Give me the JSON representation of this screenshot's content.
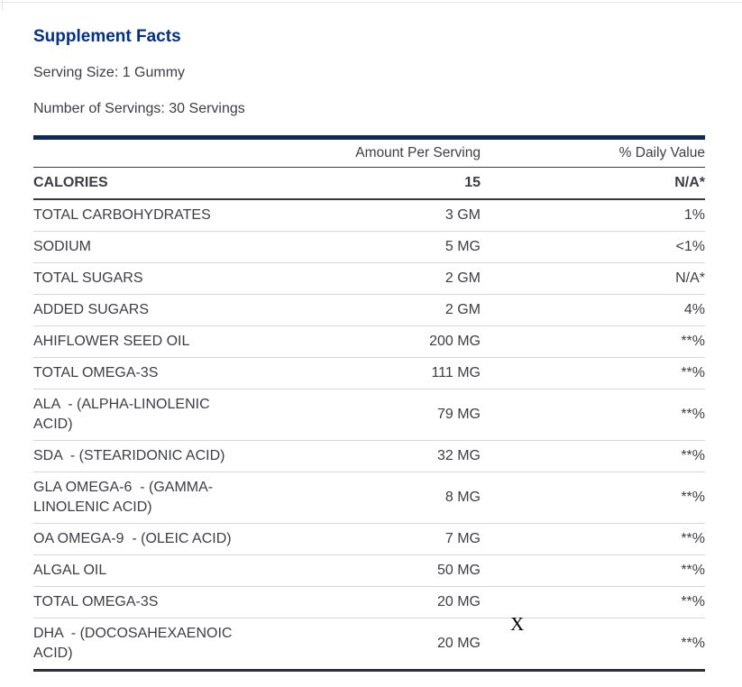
{
  "title": "Supplement Facts",
  "serving_size": "Serving Size: 1 Gummy",
  "number_of_servings": "Number of Servings: 30 Servings",
  "table": {
    "amount_header": "Amount Per Serving",
    "daily_value_header": "% Daily Value",
    "rows": [
      {
        "label": "CALORIES",
        "amount": "15",
        "dv": "N/A*",
        "bold": true
      },
      {
        "label": "TOTAL CARBOHYDRATES",
        "amount": "3 GM",
        "dv": "1%"
      },
      {
        "label": "SODIUM",
        "amount": "5 MG",
        "dv": "<1%"
      },
      {
        "label": "TOTAL SUGARS",
        "amount": "2 GM",
        "dv": "N/A*"
      },
      {
        "label": "ADDED SUGARS",
        "amount": "2 GM",
        "dv": "4%"
      },
      {
        "label": "AHIFLOWER SEED OIL",
        "amount": "200 MG",
        "dv": "**%"
      },
      {
        "label": "TOTAL OMEGA-3S",
        "amount": "111 MG",
        "dv": "**%"
      },
      {
        "label": "ALA  - (ALPHA-LINOLENIC\nACID)",
        "amount": "79 MG",
        "dv": "**%"
      },
      {
        "label": "SDA  - (STEARIDONIC ACID)",
        "amount": "32 MG",
        "dv": "**%"
      },
      {
        "label": "GLA OMEGA-6  - (GAMMA-\nLINOLENIC ACID)",
        "amount": "8 MG",
        "dv": "**%"
      },
      {
        "label": "OA OMEGA-9  - (OLEIC ACID)",
        "amount": "7 MG",
        "dv": "**%"
      },
      {
        "label": "ALGAL OIL",
        "amount": "50 MG",
        "dv": "**%"
      },
      {
        "label": "TOTAL OMEGA-3S",
        "amount": "20 MG",
        "dv": "**%"
      },
      {
        "label": "DHA  - (DOCOSAHEXAENOIC\nACID)",
        "amount": "20 MG",
        "dv": "**%"
      }
    ]
  },
  "artifact": {
    "text": "X"
  },
  "colors": {
    "title_navy": "#003087",
    "rule_navy": "#0e2a5a",
    "body_text": "#3d3e44",
    "divider_light": "#d8d8d8",
    "divider_dark": "#3a3a3e"
  }
}
